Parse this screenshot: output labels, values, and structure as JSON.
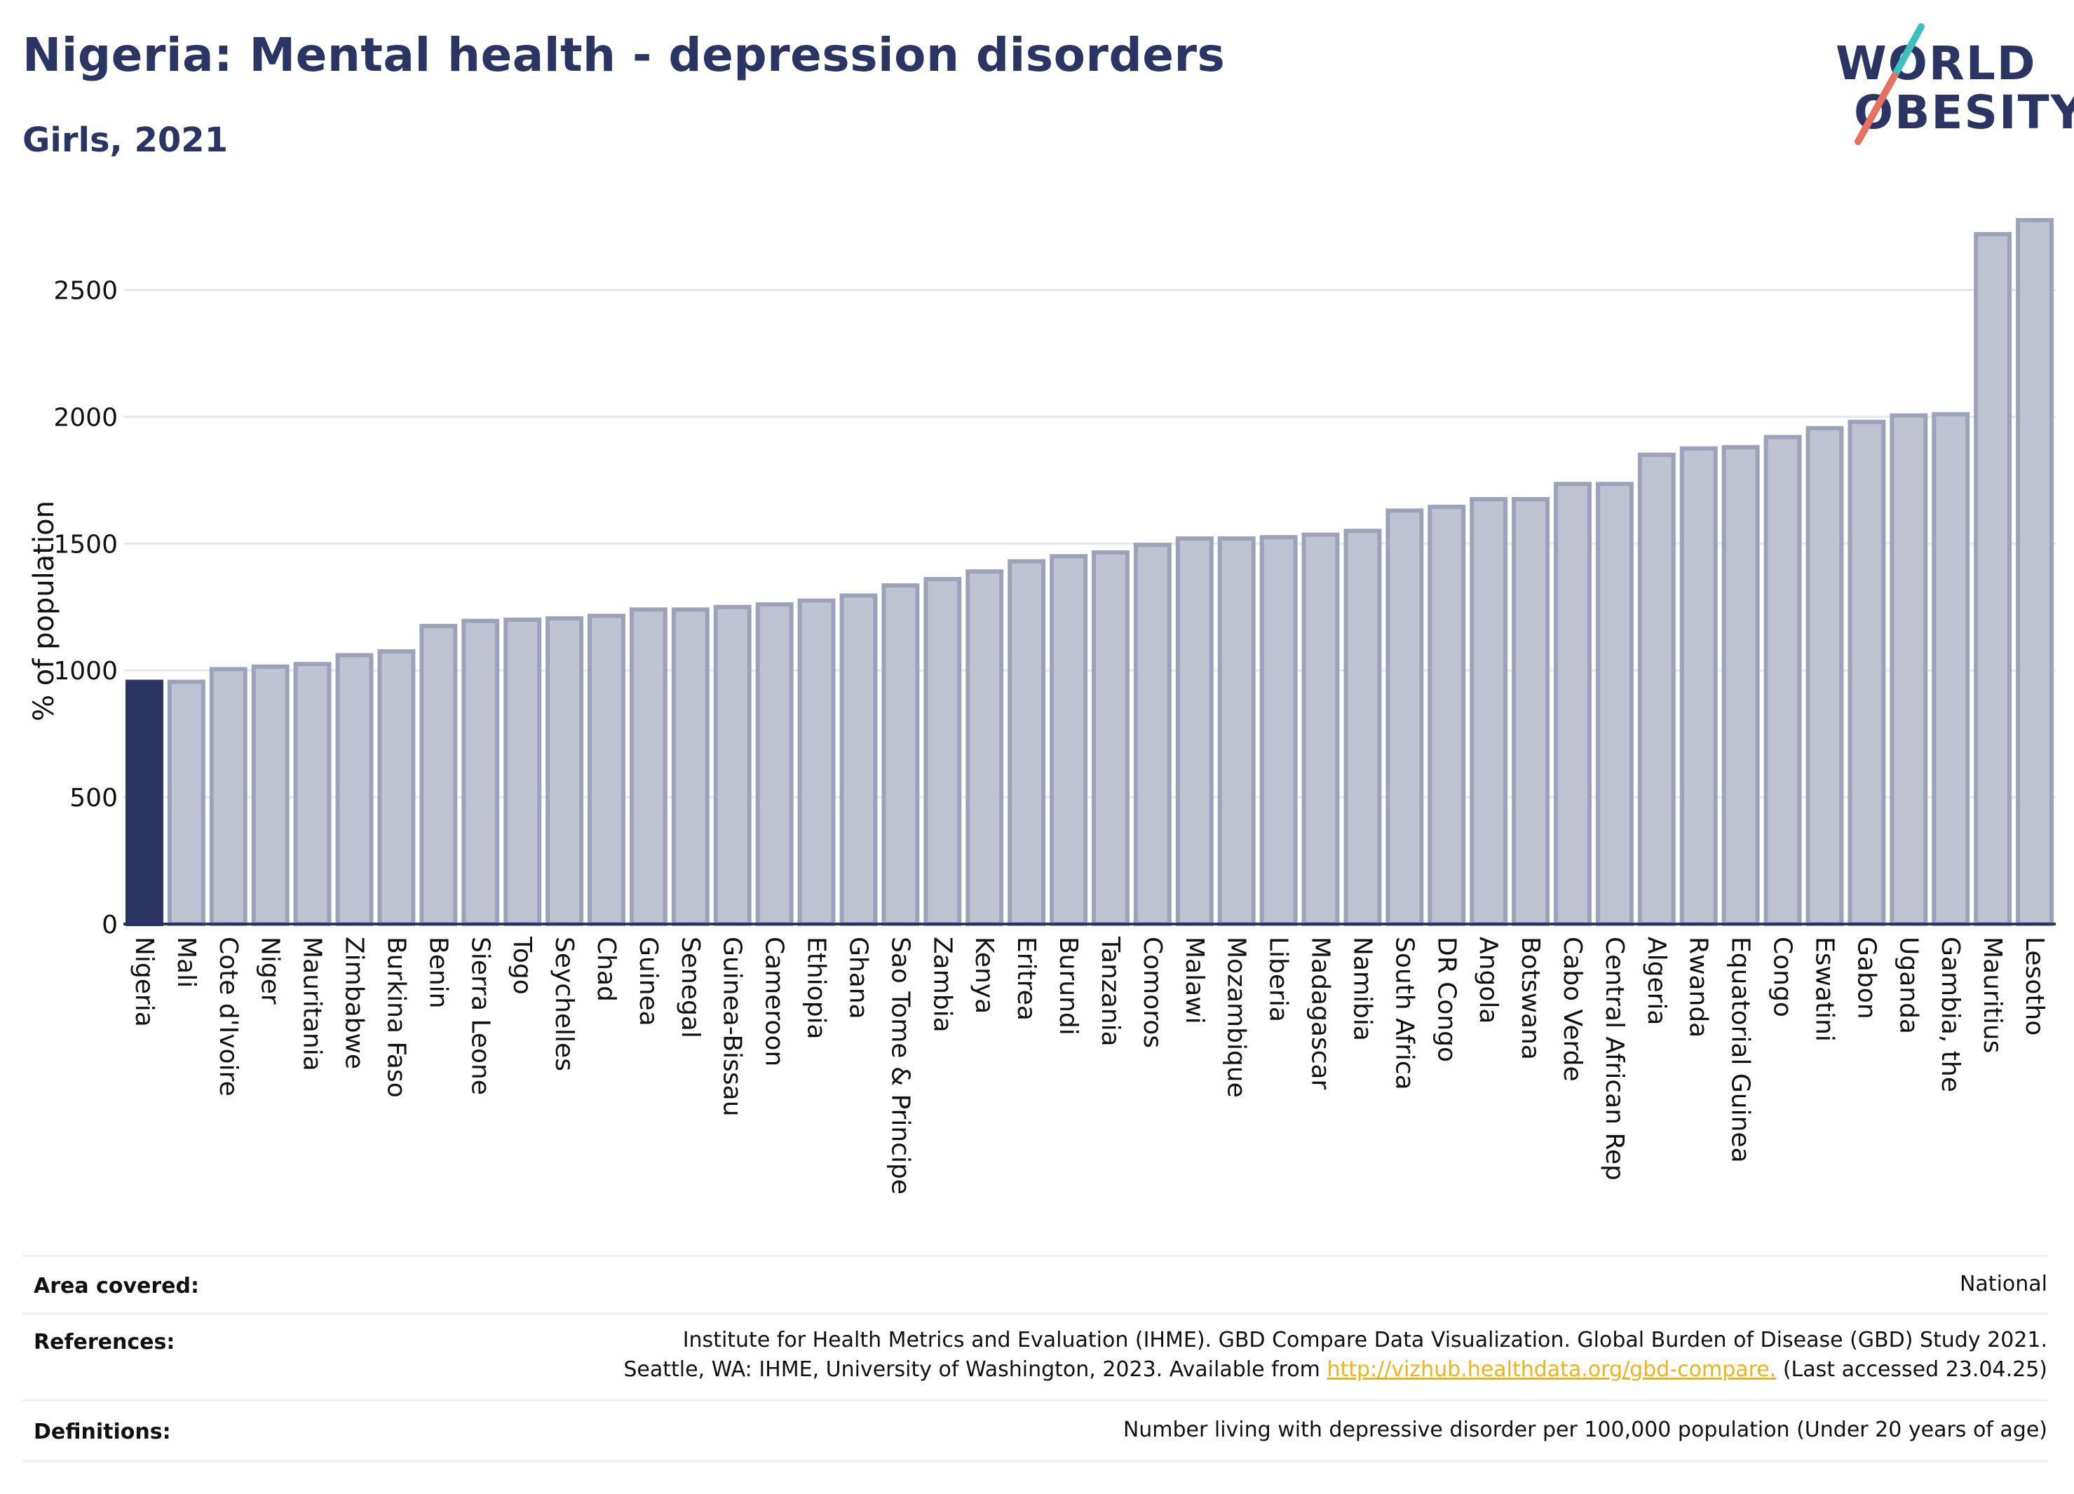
{
  "header": {
    "title": "Nigeria: Mental health - depression disorders",
    "subtitle": "Girls, 2021"
  },
  "logo": {
    "line1": "WORLD",
    "line2": "OBESITY"
  },
  "colors": {
    "highlight": "#2b3563",
    "bar_fill": "#bfc3d1",
    "bar_stroke": "#9ca2b9",
    "grid": "#e6e8ef",
    "axis": "#2b3563",
    "logo_teal": "#3fbfbf",
    "logo_coral": "#e8705f",
    "link": "#f0b21a"
  },
  "chart_data": {
    "type": "bar",
    "ylabel": "% of population",
    "ylim": [
      0,
      2800
    ],
    "yticks": [
      0,
      500,
      1000,
      1500,
      2000,
      2500
    ],
    "grid": true,
    "highlight": "Nigeria",
    "categories": [
      "Nigeria",
      "Mali",
      "Cote d'Ivoire",
      "Niger",
      "Mauritania",
      "Zimbabwe",
      "Burkina Faso",
      "Benin",
      "Sierra Leone",
      "Togo",
      "Seychelles",
      "Chad",
      "Guinea",
      "Senegal",
      "Guinea-Bissau",
      "Cameroon",
      "Ethiopia",
      "Ghana",
      "Sao Tome & Principe",
      "Zambia",
      "Kenya",
      "Eritrea",
      "Burundi",
      "Tanzania",
      "Comoros",
      "Malawi",
      "Mozambique",
      "Liberia",
      "Madagascar",
      "Namibia",
      "South Africa",
      "DR Congo",
      "Angola",
      "Botswana",
      "Cabo Verde",
      "Central African Rep",
      "Algeria",
      "Rwanda",
      "Equatorial Guinea",
      "Congo",
      "Eswatini",
      "Gabon",
      "Uganda",
      "Gambia, the",
      "Mauritius",
      "Lesotho"
    ],
    "values": [
      955,
      955,
      1005,
      1015,
      1025,
      1060,
      1075,
      1175,
      1195,
      1200,
      1205,
      1215,
      1240,
      1240,
      1250,
      1260,
      1275,
      1295,
      1335,
      1360,
      1390,
      1430,
      1450,
      1465,
      1495,
      1520,
      1520,
      1525,
      1535,
      1550,
      1630,
      1645,
      1675,
      1675,
      1735,
      1735,
      1850,
      1875,
      1880,
      1920,
      1955,
      1980,
      2005,
      2010,
      2720,
      2775
    ]
  },
  "footer": {
    "area_label": "Area covered:",
    "area_value": "National",
    "references_label": "References:",
    "references_line1": "Institute for Health Metrics and Evaluation (IHME). GBD Compare Data Visualization. Global Burden of Disease (GBD) Study 2021.",
    "references_line2_pre": "Seattle, WA: IHME, University of Washington, 2023. Available from ",
    "references_link": "http://vizhub.healthdata.org/gbd-compare.",
    "references_line2_post": " (Last accessed 23.04.25)",
    "definitions_label": "Definitions:",
    "definitions_value": "Number living with depressive disorder per 100,000 population (Under 20 years of age)"
  }
}
